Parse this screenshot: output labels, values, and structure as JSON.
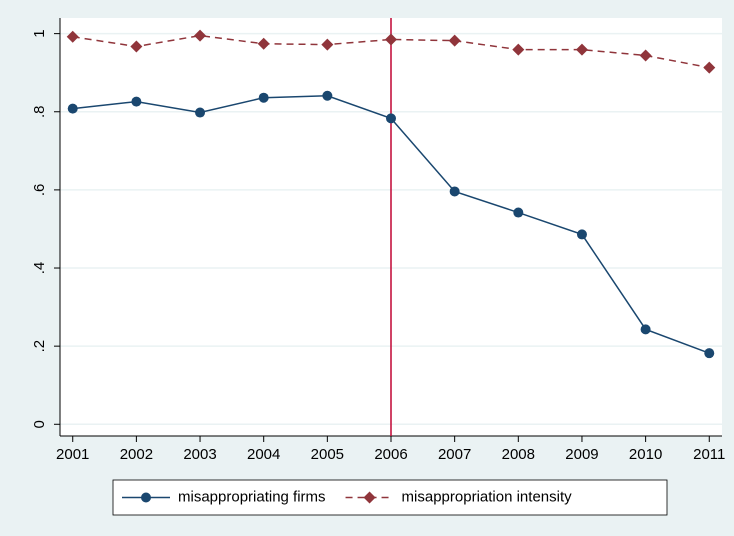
{
  "chart_data": {
    "type": "line",
    "x": [
      2001,
      2002,
      2003,
      2004,
      2005,
      2006,
      2007,
      2008,
      2009,
      2010,
      2011
    ],
    "series": [
      {
        "name": "misappropriating firms",
        "color": "#1a476f",
        "marker": "circle",
        "dash": false,
        "values": [
          0.808,
          0.826,
          0.798,
          0.836,
          0.841,
          0.783,
          0.596,
          0.542,
          0.486,
          0.243,
          0.182
        ]
      },
      {
        "name": "misappropriation intensity",
        "color": "#90353b",
        "marker": "diamond",
        "dash": true,
        "values": [
          0.992,
          0.967,
          0.995,
          0.974,
          0.972,
          0.985,
          0.982,
          0.959,
          0.959,
          0.944,
          0.913
        ]
      }
    ],
    "xlim": [
      2000.8,
      2011.2
    ],
    "xticks": [
      2001,
      2002,
      2003,
      2004,
      2005,
      2006,
      2007,
      2008,
      2009,
      2010,
      2011
    ],
    "ylim": [
      -0.03,
      1.04
    ],
    "yticks": [
      0,
      {
        "value": 0.2,
        "label": ".2"
      },
      {
        "value": 0.4,
        "label": ".4"
      },
      {
        "value": 0.6,
        "label": ".6"
      },
      {
        "value": 0.8,
        "label": ".8"
      },
      1
    ],
    "vline": {
      "x": 2006,
      "color": "#c10534"
    },
    "grid": true,
    "legend": "bottom"
  }
}
